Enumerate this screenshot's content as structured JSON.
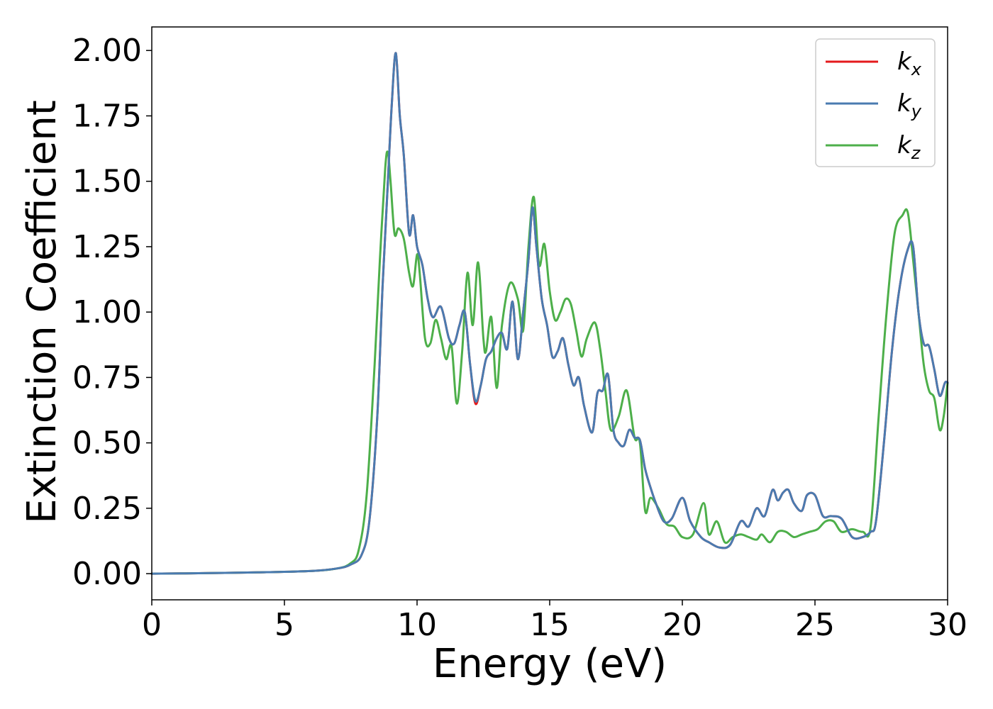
{
  "chart_data": {
    "type": "line",
    "xlabel": "Energy (eV)",
    "ylabel": "Extinction Coefficient",
    "xlim": [
      0,
      30
    ],
    "ylim": [
      -0.1,
      2.09
    ],
    "xticks": [
      0,
      5,
      10,
      15,
      20,
      25,
      30
    ],
    "xtick_labels": [
      "0",
      "5",
      "10",
      "15",
      "20",
      "25",
      "30"
    ],
    "yticks": [
      0,
      0.25,
      0.5,
      0.75,
      1.0,
      1.25,
      1.5,
      1.75,
      2.0
    ],
    "ytick_labels": [
      "0.00",
      "0.25",
      "0.50",
      "0.75",
      "1.00",
      "1.25",
      "1.50",
      "1.75",
      "2.00"
    ],
    "grid": false,
    "legend_position": "top-right",
    "series": [
      {
        "name": "k",
        "subscript": "x",
        "color": "#e41a1c",
        "x": [
          0,
          2,
          4,
          6,
          7,
          7.5,
          7.9,
          8.2,
          8.5,
          8.7,
          8.9,
          9.05,
          9.2,
          9.35,
          9.5,
          9.7,
          9.85,
          10.0,
          10.2,
          10.4,
          10.6,
          10.9,
          11.2,
          11.4,
          11.6,
          11.8,
          12.0,
          12.2,
          12.4,
          12.6,
          12.8,
          13.0,
          13.2,
          13.4,
          13.6,
          13.8,
          14.0,
          14.2,
          14.35,
          14.5,
          14.7,
          14.9,
          15.1,
          15.3,
          15.5,
          15.7,
          15.9,
          16.1,
          16.3,
          16.6,
          16.8,
          17.0,
          17.2,
          17.4,
          17.6,
          17.8,
          18.0,
          18.2,
          18.4,
          18.6,
          18.8,
          19.0,
          19.3,
          19.6,
          20.0,
          20.3,
          20.7,
          21.0,
          21.4,
          21.8,
          22.2,
          22.5,
          22.8,
          23.1,
          23.4,
          23.6,
          23.8,
          24.0,
          24.2,
          24.5,
          24.7,
          25.0,
          25.3,
          25.6,
          26.0,
          26.4,
          26.8,
          27.1,
          27.3,
          27.6,
          27.9,
          28.2,
          28.5,
          28.7,
          28.9,
          29.1,
          29.3,
          29.5,
          29.7,
          29.9,
          30.0
        ],
        "values": [
          0.0,
          0.002,
          0.005,
          0.01,
          0.02,
          0.035,
          0.07,
          0.2,
          0.6,
          1.1,
          1.5,
          1.8,
          1.99,
          1.75,
          1.6,
          1.3,
          1.37,
          1.25,
          1.18,
          1.05,
          0.98,
          1.02,
          0.9,
          0.88,
          0.95,
          1.0,
          0.8,
          0.65,
          0.72,
          0.82,
          0.85,
          0.9,
          0.92,
          0.86,
          1.04,
          0.82,
          1.0,
          1.2,
          1.4,
          1.25,
          1.05,
          0.95,
          0.83,
          0.85,
          0.9,
          0.8,
          0.72,
          0.75,
          0.64,
          0.54,
          0.69,
          0.7,
          0.76,
          0.55,
          0.5,
          0.49,
          0.55,
          0.52,
          0.51,
          0.4,
          0.33,
          0.27,
          0.2,
          0.21,
          0.29,
          0.2,
          0.14,
          0.12,
          0.1,
          0.11,
          0.2,
          0.18,
          0.25,
          0.22,
          0.32,
          0.28,
          0.31,
          0.32,
          0.27,
          0.24,
          0.3,
          0.3,
          0.22,
          0.22,
          0.21,
          0.14,
          0.14,
          0.16,
          0.2,
          0.5,
          0.85,
          1.1,
          1.24,
          1.25,
          1.0,
          0.88,
          0.87,
          0.78,
          0.68,
          0.73,
          0.73
        ]
      },
      {
        "name": "k",
        "subscript": "y",
        "color": "#4a7bb0",
        "x": [
          0,
          2,
          4,
          6,
          7,
          7.5,
          7.9,
          8.2,
          8.5,
          8.7,
          8.9,
          9.05,
          9.2,
          9.35,
          9.5,
          9.7,
          9.85,
          10.0,
          10.2,
          10.4,
          10.6,
          10.9,
          11.2,
          11.4,
          11.6,
          11.8,
          12.0,
          12.2,
          12.4,
          12.6,
          12.8,
          13.0,
          13.2,
          13.4,
          13.6,
          13.8,
          14.0,
          14.2,
          14.35,
          14.5,
          14.7,
          14.9,
          15.1,
          15.3,
          15.5,
          15.7,
          15.9,
          16.1,
          16.3,
          16.6,
          16.8,
          17.0,
          17.2,
          17.4,
          17.6,
          17.8,
          18.0,
          18.2,
          18.4,
          18.6,
          18.8,
          19.0,
          19.3,
          19.6,
          20.0,
          20.3,
          20.7,
          21.0,
          21.4,
          21.8,
          22.2,
          22.5,
          22.8,
          23.1,
          23.4,
          23.6,
          23.8,
          24.0,
          24.2,
          24.5,
          24.7,
          25.0,
          25.3,
          25.6,
          26.0,
          26.4,
          26.8,
          27.1,
          27.3,
          27.6,
          27.9,
          28.2,
          28.5,
          28.7,
          28.9,
          29.1,
          29.3,
          29.5,
          29.7,
          29.9,
          30.0
        ],
        "values": [
          0.0,
          0.002,
          0.005,
          0.01,
          0.02,
          0.035,
          0.07,
          0.2,
          0.6,
          1.1,
          1.5,
          1.8,
          1.99,
          1.75,
          1.6,
          1.3,
          1.37,
          1.25,
          1.18,
          1.05,
          0.98,
          1.02,
          0.9,
          0.88,
          0.95,
          1.0,
          0.8,
          0.66,
          0.72,
          0.82,
          0.85,
          0.9,
          0.92,
          0.86,
          1.04,
          0.82,
          1.0,
          1.2,
          1.4,
          1.25,
          1.05,
          0.95,
          0.83,
          0.85,
          0.9,
          0.8,
          0.72,
          0.75,
          0.64,
          0.54,
          0.69,
          0.7,
          0.76,
          0.55,
          0.5,
          0.49,
          0.55,
          0.52,
          0.51,
          0.4,
          0.33,
          0.27,
          0.2,
          0.21,
          0.29,
          0.2,
          0.14,
          0.12,
          0.1,
          0.11,
          0.2,
          0.18,
          0.25,
          0.22,
          0.32,
          0.28,
          0.31,
          0.32,
          0.27,
          0.24,
          0.3,
          0.3,
          0.22,
          0.22,
          0.21,
          0.14,
          0.14,
          0.16,
          0.2,
          0.5,
          0.85,
          1.1,
          1.24,
          1.25,
          1.0,
          0.88,
          0.87,
          0.78,
          0.68,
          0.73,
          0.73
        ]
      },
      {
        "name": "k",
        "subscript": "z",
        "color": "#4daf4a",
        "x": [
          0,
          2,
          4,
          6,
          7,
          7.5,
          7.8,
          8.1,
          8.4,
          8.6,
          8.8,
          8.9,
          9.0,
          9.15,
          9.3,
          9.5,
          9.7,
          9.85,
          10.0,
          10.1,
          10.3,
          10.5,
          10.7,
          10.9,
          11.1,
          11.3,
          11.5,
          11.7,
          11.9,
          12.1,
          12.3,
          12.5,
          12.6,
          12.8,
          13.0,
          13.2,
          13.5,
          13.8,
          14.0,
          14.2,
          14.4,
          14.6,
          14.8,
          15.0,
          15.2,
          15.4,
          15.6,
          15.8,
          16.0,
          16.2,
          16.4,
          16.7,
          16.9,
          17.1,
          17.3,
          17.6,
          17.9,
          18.2,
          18.4,
          18.6,
          18.8,
          19.1,
          19.4,
          19.7,
          20.0,
          20.4,
          20.8,
          21.0,
          21.3,
          21.6,
          21.9,
          22.2,
          22.5,
          22.8,
          23.0,
          23.3,
          23.6,
          23.9,
          24.2,
          24.5,
          24.8,
          25.1,
          25.4,
          25.7,
          26.0,
          26.4,
          26.8,
          27.1,
          27.4,
          27.7,
          28.0,
          28.3,
          28.5,
          28.7,
          28.9,
          29.1,
          29.3,
          29.5,
          29.7,
          29.85,
          30.0
        ],
        "values": [
          0.0,
          0.002,
          0.005,
          0.01,
          0.02,
          0.04,
          0.09,
          0.3,
          0.8,
          1.2,
          1.55,
          1.61,
          1.5,
          1.3,
          1.32,
          1.28,
          1.15,
          1.1,
          1.22,
          1.15,
          0.9,
          0.88,
          0.97,
          0.9,
          0.82,
          0.87,
          0.65,
          0.85,
          1.15,
          0.95,
          1.19,
          0.9,
          0.85,
          0.98,
          0.71,
          0.95,
          1.11,
          1.05,
          0.93,
          1.25,
          1.44,
          1.18,
          1.26,
          1.08,
          0.97,
          1.0,
          1.05,
          1.03,
          0.93,
          0.83,
          0.9,
          0.96,
          0.86,
          0.7,
          0.55,
          0.6,
          0.7,
          0.52,
          0.5,
          0.24,
          0.29,
          0.25,
          0.19,
          0.18,
          0.14,
          0.15,
          0.27,
          0.15,
          0.2,
          0.12,
          0.14,
          0.15,
          0.14,
          0.13,
          0.15,
          0.12,
          0.16,
          0.16,
          0.14,
          0.15,
          0.16,
          0.17,
          0.2,
          0.2,
          0.16,
          0.17,
          0.16,
          0.18,
          0.6,
          1.0,
          1.3,
          1.37,
          1.38,
          1.2,
          1.0,
          0.8,
          0.7,
          0.67,
          0.55,
          0.6,
          0.73
        ]
      }
    ]
  }
}
